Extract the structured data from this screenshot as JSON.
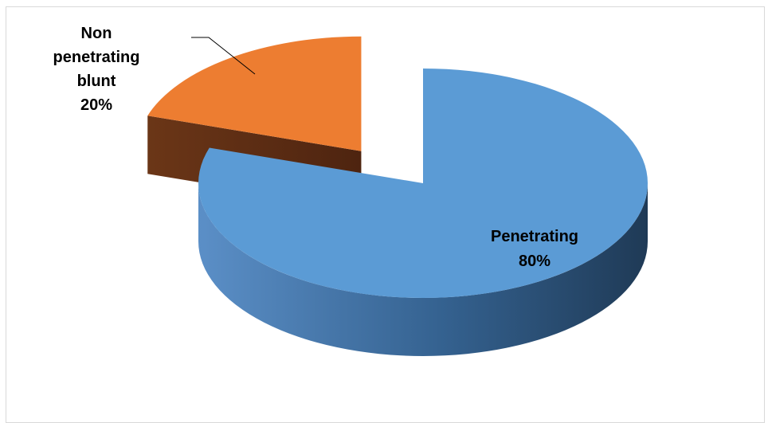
{
  "chart_data": {
    "type": "pie",
    "title": "",
    "categories": [
      "Non penetrating blunt",
      "Penetrating"
    ],
    "values": [
      20,
      80
    ],
    "colors": [
      "#ED7D31",
      "#5B9BD5"
    ],
    "labels": [
      {
        "lines": [
          "Non",
          "penetrating",
          "blunt",
          "20%"
        ]
      },
      {
        "lines": [
          "Penetrating",
          "80%"
        ]
      }
    ],
    "style": "3d-exploded",
    "legend": "none"
  }
}
